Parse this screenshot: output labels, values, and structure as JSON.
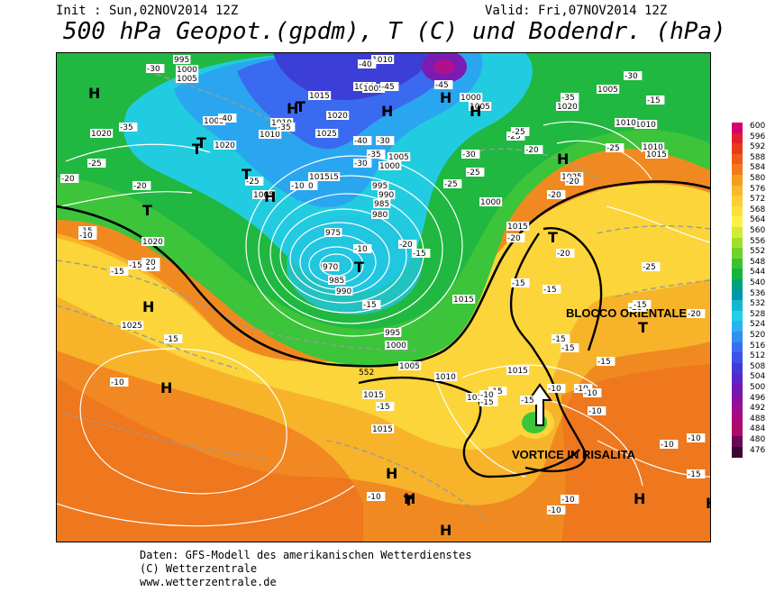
{
  "header": {
    "init": "Init : Sun,02NOV2014 12Z",
    "valid": "Valid: Fri,07NOV2014 12Z",
    "title": "500 hPa Geopot.(gpdm), T (C) und Bodendr. (hPa)"
  },
  "map": {
    "annotations": {
      "blocco": "BLOCCO ORIENTALE",
      "vortice": "VORTICE IN RISALITA"
    },
    "contour_552": "552",
    "pressure_labels": [
      "995",
      "1000",
      "1005",
      "1020",
      "1010",
      "1015",
      "1010",
      "1005",
      "1000",
      "1005",
      "1010",
      "1025",
      "1020",
      "1015",
      "1005",
      "1000",
      "995",
      "990",
      "985",
      "980",
      "975",
      "970",
      "985",
      "990",
      "995",
      "1000",
      "1005",
      "1010",
      "1020",
      "1025",
      "1015",
      "1010",
      "1005",
      "1005",
      "1010",
      "1000",
      "1015",
      "1025",
      "1015",
      "1020",
      "1010",
      "1015",
      "1010",
      "1005",
      "1015",
      "1015",
      "1010",
      "1015",
      "1020"
    ],
    "temp_labels": [
      "-20",
      "-30",
      "-40",
      "-45",
      "-45",
      "-40",
      "-35",
      "-30",
      "-25",
      "-35",
      "-40",
      "-35",
      "-30",
      "-25",
      "-25",
      "-30",
      "-25",
      "-20",
      "-25",
      "-35",
      "-30",
      "-25",
      "-20",
      "-25",
      "-15",
      "-15",
      "-15",
      "-10",
      "-20",
      "-15",
      "-15",
      "-15",
      "-20",
      "-25",
      "-25",
      "-20",
      "-20",
      "-15",
      "-15",
      "-15",
      "-15",
      "-15",
      "-15",
      "-10",
      "-10",
      "-10",
      "-10",
      "-10",
      "-15",
      "-10",
      "-10",
      "-10",
      "-15",
      "-20",
      "-20",
      "-15",
      "-10",
      "-15",
      "-20",
      "-15",
      "-10",
      "-15",
      "-20",
      "-15",
      "-10",
      "-10",
      "-10"
    ],
    "high_low_marks": [
      "H",
      "H",
      "H",
      "T",
      "T",
      "H",
      "H",
      "T",
      "T",
      "T",
      "H",
      "H",
      "H",
      "T",
      "T",
      "H",
      "H",
      "T",
      "H",
      "H",
      "H",
      "T",
      "H"
    ]
  },
  "legend": {
    "values": [
      "600",
      "596",
      "592",
      "588",
      "584",
      "580",
      "576",
      "572",
      "568",
      "564",
      "560",
      "556",
      "552",
      "548",
      "544",
      "540",
      "536",
      "532",
      "528",
      "524",
      "520",
      "516",
      "512",
      "508",
      "504",
      "500",
      "496",
      "492",
      "488",
      "484",
      "480",
      "476"
    ],
    "colors": [
      "#d4006e",
      "#e0202a",
      "#e83c18",
      "#ef5a18",
      "#f27a1c",
      "#f59c22",
      "#f8b82c",
      "#fbcf34",
      "#fde03c",
      "#fff048",
      "#d0ec36",
      "#a0e02c",
      "#70d22a",
      "#3cc430",
      "#16b43a",
      "#00a27e",
      "#0096aa",
      "#12b8cc",
      "#20d0e8",
      "#2ab2f0",
      "#3090f0",
      "#3a6ef0",
      "#3c52e8",
      "#4438d8",
      "#5a26c8",
      "#7418b4",
      "#8c10a0",
      "#a00c8c",
      "#aa0a78",
      "#b00a64",
      "#6a0858",
      "#3e0438"
    ]
  },
  "footer": {
    "line1": "Daten: GFS-Modell des amerikanischen Wetterdienstes",
    "line2": "(C) Wetterzentrale",
    "line3": "www.wetterzentrale.de"
  }
}
